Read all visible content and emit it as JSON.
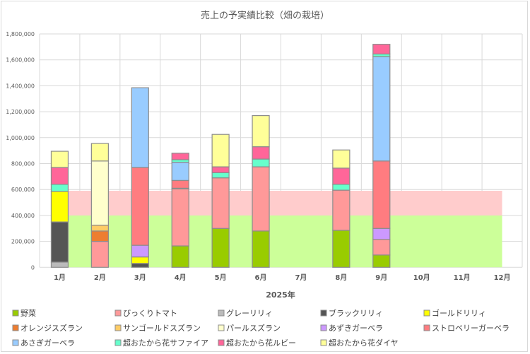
{
  "chart_data": {
    "type": "bar",
    "stacked": true,
    "title": "売上の予実績比較（畑の栽培）",
    "xlabel": "2025年",
    "ylabel": "",
    "ylim": [
      0,
      1800000
    ],
    "yticks": [
      "0",
      "200,000",
      "400,000",
      "600,000",
      "800,000",
      "1,000,000",
      "1,200,000",
      "1,400,000",
      "1,600,000",
      "1,800,000"
    ],
    "ytick_values": [
      0,
      200000,
      400000,
      600000,
      800000,
      1000000,
      1200000,
      1400000,
      1600000,
      1800000
    ],
    "grid": true,
    "legend_position": "bottom",
    "categories": [
      "1月",
      "2月",
      "3月",
      "4月",
      "5月",
      "6月",
      "7月",
      "8月",
      "9月",
      "10月",
      "11月",
      "12月"
    ],
    "background_areas": [
      {
        "color": "#CCFF99",
        "values": [
          400000,
          400000,
          400000,
          400000,
          400000,
          400000,
          400000,
          400000,
          400000,
          400000,
          400000,
          400000
        ]
      },
      {
        "color": "#FFCCCC",
        "values": [
          190000,
          190000,
          190000,
          190000,
          190000,
          190000,
          190000,
          190000,
          190000,
          190000,
          190000,
          190000
        ]
      }
    ],
    "series": [
      {
        "name": "野菜",
        "color": "#99CC00",
        "values": [
          0,
          0,
          0,
          165000,
          300000,
          280000,
          0,
          285000,
          95000,
          0,
          0,
          0
        ]
      },
      {
        "name": "びっくりトマト",
        "color": "#FF9999",
        "values": [
          0,
          200000,
          0,
          440000,
          390000,
          495000,
          0,
          310000,
          120000,
          0,
          0,
          0
        ]
      },
      {
        "name": "グレーリリィ",
        "color": "#BBBBBB",
        "values": [
          40000,
          0,
          0,
          0,
          0,
          0,
          0,
          0,
          0,
          0,
          0,
          0
        ]
      },
      {
        "name": "ブラックリリィ",
        "color": "#555555",
        "values": [
          310000,
          0,
          30000,
          5000,
          0,
          0,
          0,
          0,
          0,
          0,
          0,
          0
        ]
      },
      {
        "name": "ゴールドリリィ",
        "color": "#FFFF00",
        "values": [
          235000,
          0,
          50000,
          0,
          0,
          0,
          0,
          0,
          0,
          0,
          0,
          0
        ]
      },
      {
        "name": "オレンジスズラン",
        "color": "#ED7D31",
        "values": [
          0,
          80000,
          0,
          0,
          0,
          0,
          0,
          0,
          0,
          0,
          0,
          0
        ]
      },
      {
        "name": "サンゴールドスズラン",
        "color": "#FFCC66",
        "values": [
          0,
          45000,
          0,
          0,
          0,
          0,
          0,
          0,
          0,
          0,
          0,
          0
        ]
      },
      {
        "name": "パールスズラン",
        "color": "#FFFFCC",
        "values": [
          0,
          495000,
          0,
          0,
          0,
          0,
          0,
          0,
          0,
          0,
          0,
          0
        ]
      },
      {
        "name": "あずきガーベラ",
        "color": "#CC99FF",
        "values": [
          0,
          0,
          90000,
          0,
          0,
          0,
          0,
          0,
          85000,
          0,
          0,
          0
        ]
      },
      {
        "name": "ストロベリーガーベラ",
        "color": "#FF7C80",
        "values": [
          0,
          0,
          600000,
          60000,
          0,
          0,
          0,
          0,
          520000,
          0,
          0,
          0
        ]
      },
      {
        "name": "あさぎガーベラ",
        "color": "#99CCFF",
        "values": [
          0,
          0,
          615000,
          140000,
          0,
          0,
          0,
          0,
          805000,
          0,
          0,
          0
        ]
      },
      {
        "name": "超おたから花サファイア",
        "color": "#66FFCC",
        "values": [
          55000,
          0,
          0,
          20000,
          40000,
          60000,
          0,
          45000,
          20000,
          0,
          0,
          0
        ]
      },
      {
        "name": "超おたから花ルビー",
        "color": "#FF6699",
        "values": [
          130000,
          0,
          0,
          50000,
          45000,
          95000,
          0,
          125000,
          75000,
          0,
          0,
          0
        ]
      },
      {
        "name": "超おたから花ダイヤ",
        "color": "#FFFF99",
        "values": [
          125000,
          135000,
          0,
          0,
          250000,
          240000,
          0,
          140000,
          0,
          0,
          0,
          0
        ]
      }
    ]
  }
}
